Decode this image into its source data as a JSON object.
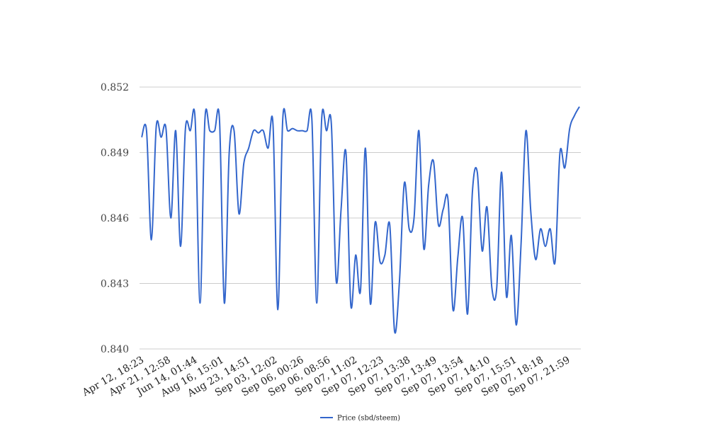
{
  "chart_data": {
    "type": "line",
    "title": "",
    "xlabel": "",
    "ylabel": "",
    "ylim": [
      0.84,
      0.852
    ],
    "y_ticks": [
      "0.852",
      "0.849",
      "0.846",
      "0.843",
      "0.840"
    ],
    "y_tick_values": [
      0.852,
      0.849,
      0.846,
      0.843,
      0.84
    ],
    "grid": "horizontal",
    "legend_position": "bottom",
    "x_tick_labels": [
      "Apr 12, 18:23",
      "Apr 21, 12:58",
      "Jun 14, 01:44",
      "Aug 16, 15:01",
      "Aug 23, 14:51",
      "Sep 03, 12:02",
      "Sep 06, 00:26",
      "Sep 06, 08:56",
      "Sep 07, 11:02",
      "Sep 07, 12:23",
      "Sep 07, 13:38",
      "Sep 07, 13:49",
      "Sep 07, 13:54",
      "Sep 07, 14:10",
      "Sep 07, 15:51",
      "Sep 07, 18:18",
      "Sep 07, 21:59"
    ],
    "series": [
      {
        "name": "Price (sbd/steem)",
        "color": "#3366cc",
        "values": [
          0.8497,
          0.85,
          0.845,
          0.8502,
          0.8497,
          0.8501,
          0.846,
          0.85,
          0.8447,
          0.8501,
          0.85,
          0.8505,
          0.8421,
          0.8505,
          0.85,
          0.85,
          0.8505,
          0.8421,
          0.849,
          0.85,
          0.8462,
          0.8485,
          0.8492,
          0.85,
          0.8499,
          0.85,
          0.8492,
          0.8503,
          0.8418,
          0.8505,
          0.85,
          0.8501,
          0.85,
          0.85,
          0.85,
          0.8505,
          0.8421,
          0.8505,
          0.85,
          0.8503,
          0.8431,
          0.8464,
          0.849,
          0.842,
          0.8443,
          0.8427,
          0.8492,
          0.8421,
          0.8458,
          0.844,
          0.8443,
          0.8457,
          0.8408,
          0.8431,
          0.8476,
          0.8455,
          0.846,
          0.85,
          0.8446,
          0.8475,
          0.8486,
          0.8457,
          0.8464,
          0.8468,
          0.8418,
          0.8442,
          0.846,
          0.8416,
          0.8472,
          0.8481,
          0.8445,
          0.8465,
          0.8428,
          0.8428,
          0.8481,
          0.8424,
          0.8452,
          0.8411,
          0.8448,
          0.85,
          0.8463,
          0.8441,
          0.8455,
          0.8447,
          0.8455,
          0.844,
          0.849,
          0.8483,
          0.8501,
          0.8507,
          0.8511
        ]
      }
    ]
  }
}
